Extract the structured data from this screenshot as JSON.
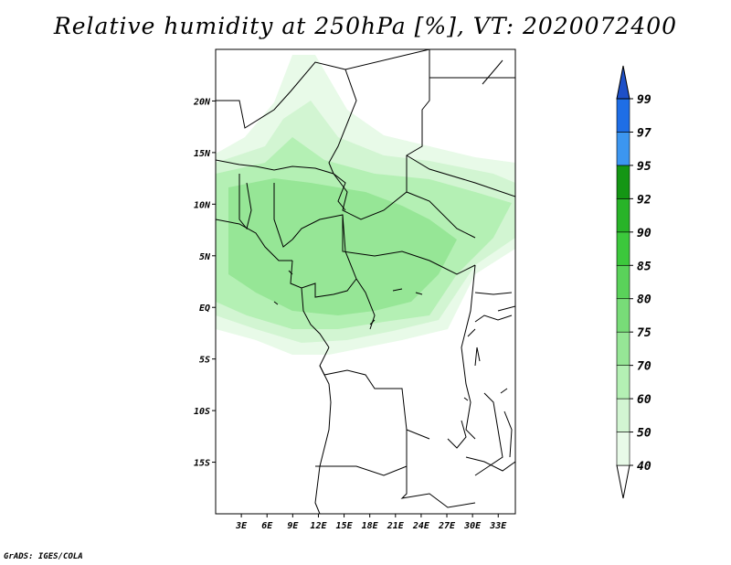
{
  "title": "Relative humidity at 250hPa [%], VT: 2020072400",
  "credit": "GrADS: IGES/COLA",
  "map": {
    "lon_ticks": [
      "3E",
      "6E",
      "9E",
      "12E",
      "15E",
      "18E",
      "21E",
      "24E",
      "27E",
      "30E",
      "33E"
    ],
    "lon_values": [
      3,
      6,
      9,
      12,
      15,
      18,
      21,
      24,
      27,
      30,
      33
    ],
    "lat_ticks": [
      "20N",
      "15N",
      "10N",
      "5N",
      "EQ",
      "5S",
      "10S",
      "15S"
    ],
    "lat_values": [
      20,
      15,
      10,
      5,
      0,
      -5,
      -10,
      -15
    ],
    "lon_range": [
      0,
      35
    ],
    "lat_range": [
      -20,
      25
    ]
  },
  "colorbar": {
    "levels": [
      "40",
      "50",
      "60",
      "70",
      "75",
      "80",
      "85",
      "90",
      "92",
      "95",
      "97",
      "99"
    ],
    "colors": [
      "#e8fae8",
      "#d2f5d2",
      "#b4f0b4",
      "#96e696",
      "#78dc78",
      "#5ad25a",
      "#3cc83c",
      "#28b428",
      "#149614",
      "#3c96f0",
      "#1e6ee6",
      "#1e50c8"
    ]
  }
}
